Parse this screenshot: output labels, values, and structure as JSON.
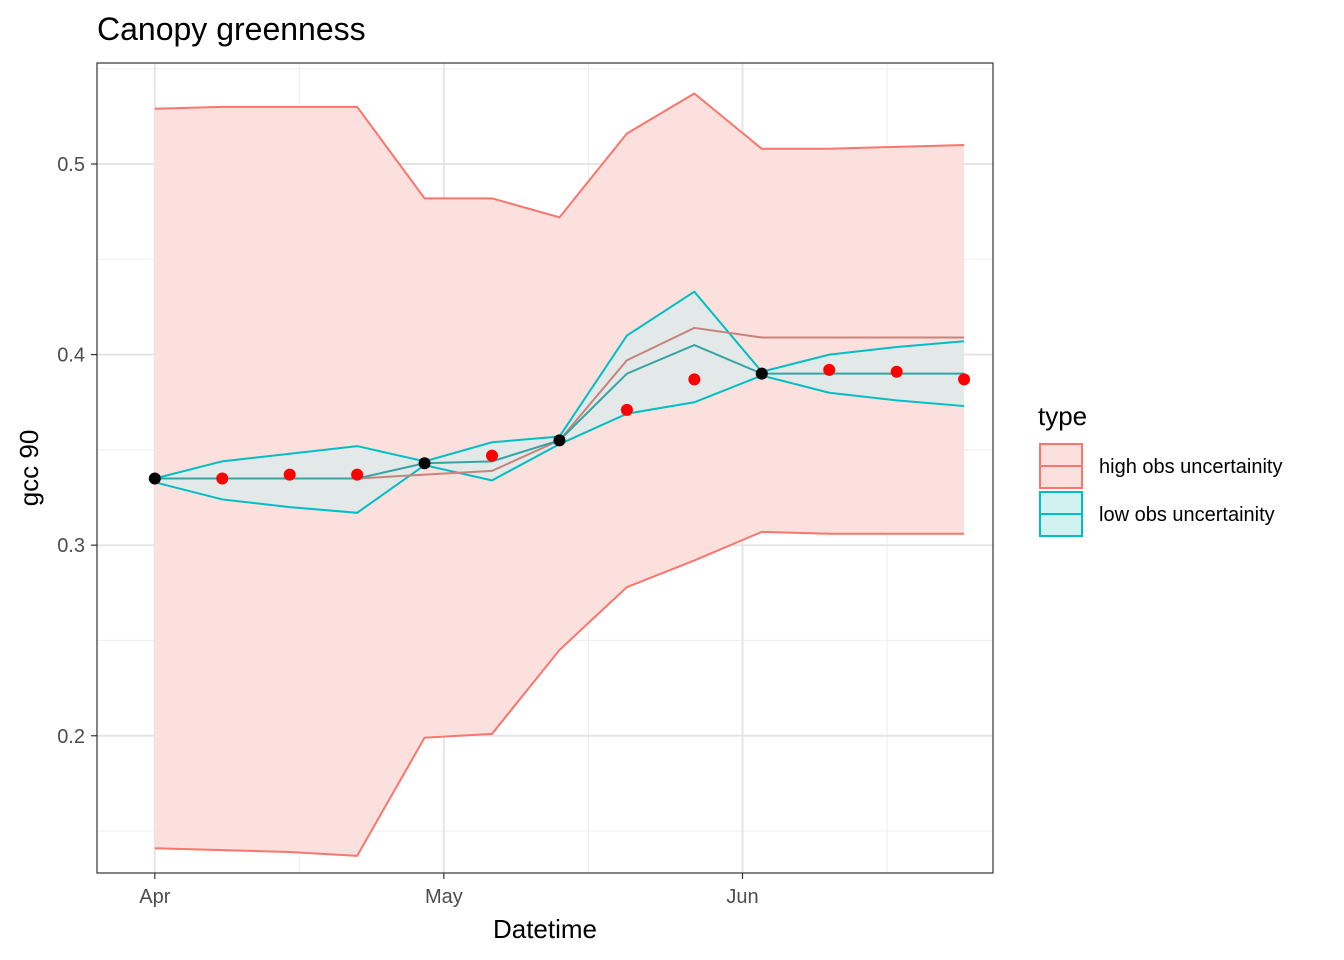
{
  "chart_data": {
    "type": "line",
    "title": "Canopy greenness",
    "xlabel": "Datetime",
    "ylabel": "gcc 90",
    "x_ticks": [
      "Apr",
      "May",
      "Jun"
    ],
    "y_ticks": [
      "0.2",
      "0.3",
      "0.4",
      "0.5"
    ],
    "ylim": [
      0.128,
      0.553
    ],
    "grid": true,
    "legend": {
      "title": "type",
      "position": "right",
      "entries": [
        {
          "label": "high obs uncertainity",
          "line_color": "#F8766D",
          "fill_color": "#FCE0DE"
        },
        {
          "label": "low obs uncertainity",
          "line_color": "#00BFC4",
          "fill_color": "#CDEFF0"
        }
      ]
    },
    "x_dates": [
      "2021-04-01",
      "2021-04-08",
      "2021-04-15",
      "2021-04-22",
      "2021-04-29",
      "2021-05-06",
      "2021-05-13",
      "2021-05-20",
      "2021-05-27",
      "2021-06-03",
      "2021-06-10",
      "2021-06-17",
      "2021-06-24"
    ],
    "series": [
      {
        "name": "high obs uncertainity",
        "color": "#F8766D",
        "fill": "#FCE0DE",
        "mean": [
          0.335,
          0.335,
          0.335,
          0.335,
          0.337,
          0.339,
          0.355,
          0.397,
          0.414,
          0.409,
          0.409,
          0.409,
          0.409
        ],
        "upper": [
          0.529,
          0.53,
          0.53,
          0.53,
          0.482,
          0.482,
          0.472,
          0.516,
          0.537,
          0.508,
          0.508,
          0.509,
          0.51
        ],
        "lower": [
          0.141,
          0.14,
          0.139,
          0.137,
          0.199,
          0.201,
          0.245,
          0.278,
          0.292,
          0.307,
          0.306,
          0.306,
          0.306
        ]
      },
      {
        "name": "low obs uncertainity",
        "color": "#00BFC4",
        "fill": "#CDEFF0",
        "mean": [
          0.335,
          0.335,
          0.335,
          0.335,
          0.343,
          0.344,
          0.355,
          0.39,
          0.405,
          0.39,
          0.39,
          0.39,
          0.39
        ],
        "upper": [
          0.335,
          0.344,
          0.348,
          0.352,
          0.344,
          0.354,
          0.357,
          0.41,
          0.433,
          0.391,
          0.4,
          0.404,
          0.407
        ],
        "lower": [
          0.333,
          0.324,
          0.32,
          0.317,
          0.342,
          0.334,
          0.353,
          0.369,
          0.375,
          0.389,
          0.38,
          0.376,
          0.373
        ]
      }
    ],
    "forecast_points": {
      "color": "#FF0000",
      "x": [
        "2021-04-08",
        "2021-04-15",
        "2021-04-22",
        "2021-05-06",
        "2021-05-20",
        "2021-05-27",
        "2021-06-10",
        "2021-06-17",
        "2021-06-24"
      ],
      "y": [
        0.335,
        0.337,
        0.337,
        0.347,
        0.371,
        0.387,
        0.392,
        0.391,
        0.387
      ]
    },
    "observed_points": {
      "color": "#000000",
      "x": [
        "2021-04-01",
        "2021-04-29",
        "2021-05-13",
        "2021-06-03"
      ],
      "y": [
        0.335,
        0.343,
        0.355,
        0.39
      ]
    }
  }
}
